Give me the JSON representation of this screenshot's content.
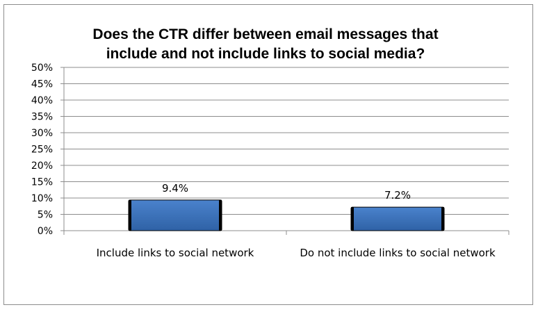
{
  "chart_data": {
    "type": "bar",
    "title_lines": [
      "Does the CTR differ between email messages that",
      "include and not include links to social media?"
    ],
    "categories": [
      "Include links to social network",
      "Do not include links to social network"
    ],
    "values": [
      9.4,
      7.2
    ],
    "data_labels": [
      "9.4%",
      "7.2%"
    ],
    "ylim": [
      0,
      50
    ],
    "yticks": [
      0,
      5,
      10,
      15,
      20,
      25,
      30,
      35,
      40,
      45,
      50
    ],
    "ytick_labels": [
      "0%",
      "5%",
      "10%",
      "15%",
      "20%",
      "25%",
      "30%",
      "35%",
      "40%",
      "45%",
      "50%"
    ],
    "xlabel": "",
    "ylabel": "",
    "grid": true,
    "legend": "none",
    "bar_color": "#3a70b8",
    "bar_edge_color": "#000000",
    "grid_color": "#8c8c8c"
  }
}
